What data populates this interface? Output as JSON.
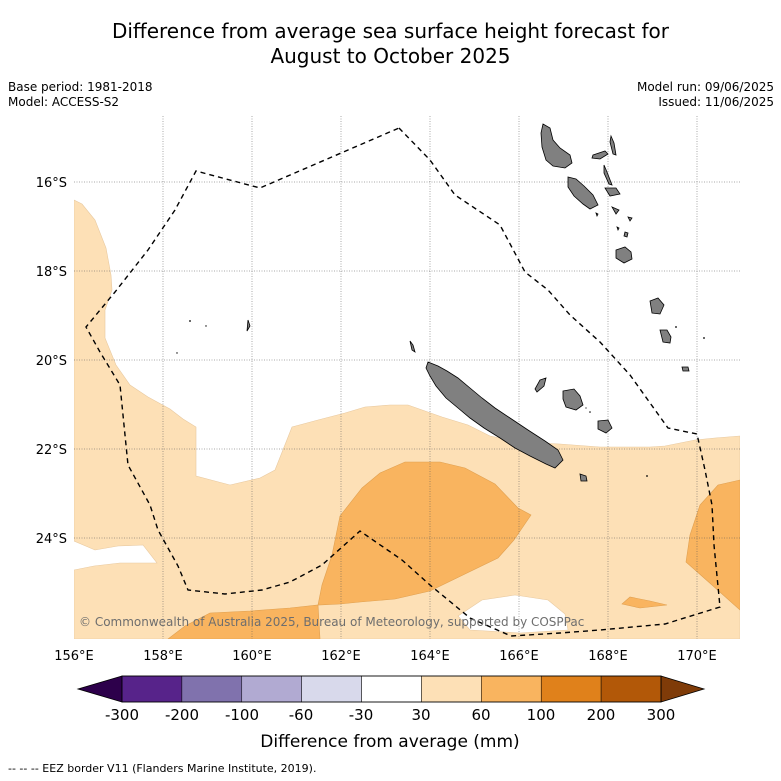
{
  "title": {
    "line1": "Difference from average sea surface height forecast for",
    "line2": "August to October 2025"
  },
  "meta": {
    "base_period": "Base period: 1981-2018",
    "model": "Model: ACCESS-S2",
    "model_run": "Model run: 09/06/2025",
    "issued": "Issued: 11/06/2025"
  },
  "map": {
    "lat_labels": [
      "16°S",
      "18°S",
      "20°S",
      "22°S",
      "24°S"
    ],
    "lon_labels": [
      "156°E",
      "158°E",
      "160°E",
      "162°E",
      "164°E",
      "166°E",
      "168°E",
      "170°E"
    ],
    "copyright": "© Commonwealth of Australia 2025, Bureau of Meteorology, supported by COSPPac",
    "colors": {
      "land": "#808080",
      "anomaly_30_60": "#fde0b6",
      "anomaly_60_100": "#f9b45f"
    }
  },
  "colorbar": {
    "ticks": [
      "-300",
      "-200",
      "-100",
      "-60",
      "-30",
      "30",
      "60",
      "100",
      "200",
      "300"
    ],
    "colors": [
      "#57238a",
      "#8072ad",
      "#b1aad2",
      "#d8d9eb",
      "#ffffff",
      "#fde0b6",
      "#f9b45f",
      "#e0811b",
      "#b25808"
    ],
    "under_color": "#2d004b",
    "over_color": "#7f3b08",
    "label": "Difference from average (mm)"
  },
  "legend": {
    "eez": "-- -- -- EEZ border V11 (Flanders Marine Institute, 2019)."
  }
}
